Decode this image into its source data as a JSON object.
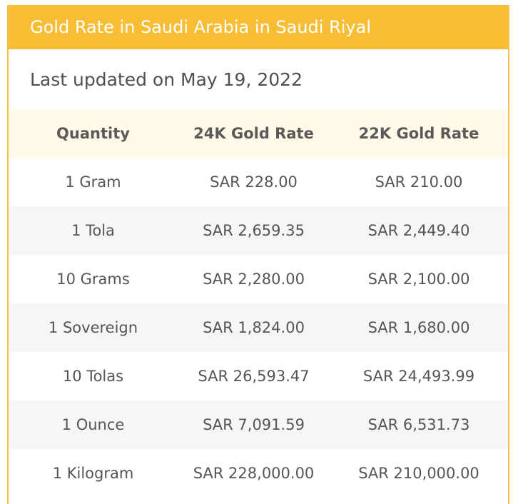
{
  "header": {
    "title": "Gold Rate in Saudi Arabia in Saudi Riyal",
    "background_color": "#f7bd35",
    "title_color": "#ffffff"
  },
  "last_updated": "Last updated on May 19, 2022",
  "table": {
    "columns": [
      "Quantity",
      "24K Gold Rate",
      "22K Gold Rate"
    ],
    "header_background": "#fffbe8",
    "rows": [
      {
        "quantity": "1 Gram",
        "rate_24k": "SAR 228.00",
        "rate_22k": "SAR 210.00"
      },
      {
        "quantity": "1 Tola",
        "rate_24k": "SAR 2,659.35",
        "rate_22k": "SAR 2,449.40"
      },
      {
        "quantity": "10 Grams",
        "rate_24k": "SAR 2,280.00",
        "rate_22k": "SAR 2,100.00"
      },
      {
        "quantity": "1 Sovereign",
        "rate_24k": "SAR 1,824.00",
        "rate_22k": "SAR 1,680.00"
      },
      {
        "quantity": "10 Tolas",
        "rate_24k": "SAR 26,593.47",
        "rate_22k": "SAR 24,493.99"
      },
      {
        "quantity": "1 Ounce",
        "rate_24k": "SAR 7,091.59",
        "rate_22k": "SAR 6,531.73"
      },
      {
        "quantity": "1 Kilogram",
        "rate_24k": "SAR 228,000.00",
        "rate_22k": "SAR 210,000.00"
      }
    ]
  }
}
